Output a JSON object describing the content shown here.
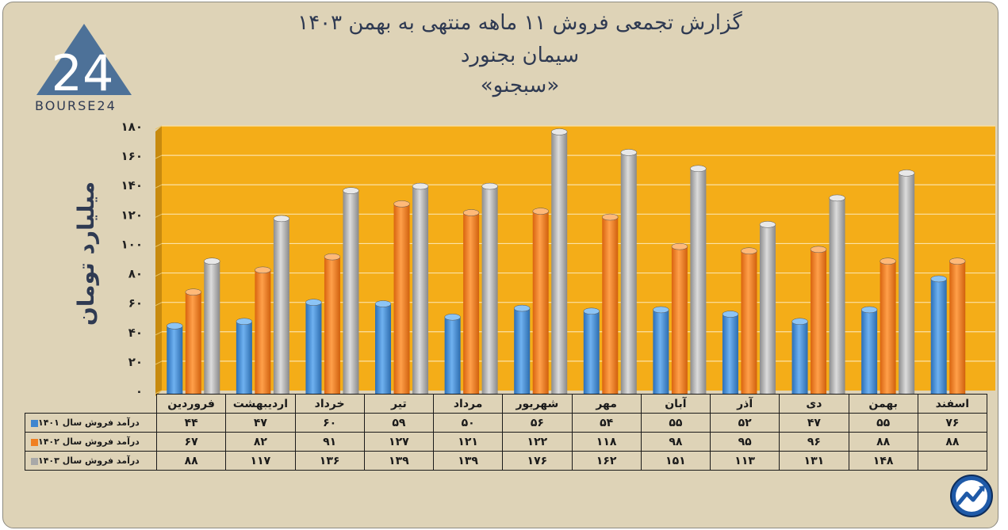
{
  "title": {
    "line1": "گزارش تجمعی فروش ۱۱ ماهه منتهی به بهمن ۱۴۰۳",
    "line2": "سیمان بجنورد",
    "line3": "«سبجنو»"
  },
  "logo": {
    "text": "BOURSE24",
    "glyph": "24"
  },
  "colors": {
    "background": "#ded3b7",
    "plot": "#f4ad18",
    "s1401": "#3f86cf",
    "s1402": "#f07f20",
    "s1403": "#a8a8a8",
    "text": "#2f3a52"
  },
  "chart_data": {
    "type": "bar",
    "ylabel": "میلیارد تومان",
    "ylim": [
      0,
      180
    ],
    "yticks": [
      "۰",
      "۲۰",
      "۴۰",
      "۶۰",
      "۸۰",
      "۱۰۰",
      "۱۲۰",
      "۱۴۰",
      "۱۶۰",
      "۱۸۰"
    ],
    "grid": true,
    "categories": [
      "فروردین",
      "اردیبهشت",
      "خرداد",
      "تیر",
      "مرداد",
      "شهریور",
      "مهر",
      "آبان",
      "آذر",
      "دی",
      "بهمن",
      "اسفند"
    ],
    "series": [
      {
        "name": "درآمد فروش سال ۱۴۰۱",
        "values": [
          44,
          47,
          60,
          59,
          50,
          56,
          54,
          55,
          52,
          47,
          55,
          76
        ],
        "labels": [
          "۴۴",
          "۴۷",
          "۶۰",
          "۵۹",
          "۵۰",
          "۵۶",
          "۵۴",
          "۵۵",
          "۵۲",
          "۴۷",
          "۵۵",
          "۷۶"
        ]
      },
      {
        "name": "درآمد فروش سال ۱۴۰۲",
        "values": [
          67,
          82,
          91,
          127,
          121,
          122,
          118,
          98,
          95,
          96,
          88,
          88
        ],
        "labels": [
          "۶۷",
          "۸۲",
          "۹۱",
          "۱۲۷",
          "۱۲۱",
          "۱۲۲",
          "۱۱۸",
          "۹۸",
          "۹۵",
          "۹۶",
          "۸۸",
          "۸۸"
        ]
      },
      {
        "name": "درآمد فروش سال ۱۴۰۳",
        "values": [
          88,
          117,
          136,
          139,
          139,
          176,
          162,
          151,
          113,
          131,
          148,
          null
        ],
        "labels": [
          "۸۸",
          "۱۱۷",
          "۱۳۶",
          "۱۳۹",
          "۱۳۹",
          "۱۷۶",
          "۱۶۲",
          "۱۵۱",
          "۱۱۳",
          "۱۳۱",
          "۱۴۸",
          ""
        ]
      }
    ]
  }
}
